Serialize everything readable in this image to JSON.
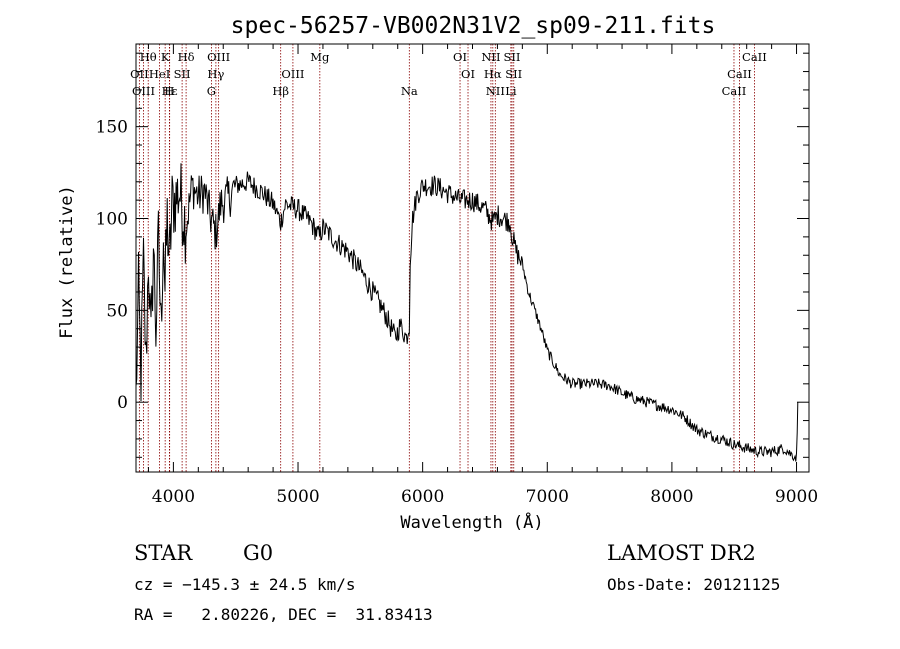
{
  "chart_data": {
    "type": "line",
    "title": "spec-56257-VB002N31V2_sp09-211.fits",
    "xlabel": "Wavelength (Å)",
    "ylabel": "Flux (relative)",
    "xlim": [
      3700,
      9100
    ],
    "ylim": [
      -38,
      195
    ],
    "xticks": [
      4000,
      5000,
      6000,
      7000,
      8000,
      9000
    ],
    "yticks": [
      0,
      50,
      100,
      150
    ],
    "grid": false,
    "spectrum": {
      "name": "",
      "color": "#000000",
      "anchors": [
        [
          3700,
          2
        ],
        [
          3720,
          60
        ],
        [
          3740,
          15
        ],
        [
          3760,
          75
        ],
        [
          3780,
          20
        ],
        [
          3800,
          80
        ],
        [
          3820,
          30
        ],
        [
          3840,
          85
        ],
        [
          3860,
          40
        ],
        [
          3880,
          88
        ],
        [
          3900,
          40
        ],
        [
          3920,
          95
        ],
        [
          3933,
          60
        ],
        [
          3950,
          100
        ],
        [
          3968,
          75
        ],
        [
          3990,
          108
        ],
        [
          4010,
          110
        ],
        [
          4050,
          115
        ],
        [
          4101,
          95
        ],
        [
          4150,
          118
        ],
        [
          4200,
          112
        ],
        [
          4250,
          115
        ],
        [
          4300,
          100
        ],
        [
          4340,
          92
        ],
        [
          4380,
          108
        ],
        [
          4450,
          112
        ],
        [
          4500,
          118
        ],
        [
          4600,
          120
        ],
        [
          4700,
          115
        ],
        [
          4800,
          108
        ],
        [
          4861,
          98
        ],
        [
          4900,
          108
        ],
        [
          5000,
          105
        ],
        [
          5100,
          98
        ],
        [
          5172,
          90
        ],
        [
          5200,
          95
        ],
        [
          5300,
          88
        ],
        [
          5400,
          82
        ],
        [
          5500,
          72
        ],
        [
          5600,
          60
        ],
        [
          5700,
          48
        ],
        [
          5780,
          35
        ],
        [
          5820,
          42
        ],
        [
          5870,
          35
        ],
        [
          5893,
          42
        ],
        [
          5900,
          78
        ],
        [
          5920,
          100
        ],
        [
          5950,
          112
        ],
        [
          6000,
          118
        ],
        [
          6100,
          118
        ],
        [
          6200,
          114
        ],
        [
          6300,
          110
        ],
        [
          6400,
          110
        ],
        [
          6500,
          105
        ],
        [
          6563,
          98
        ],
        [
          6600,
          102
        ],
        [
          6700,
          98
        ],
        [
          6720,
          90
        ],
        [
          6750,
          82
        ],
        [
          6800,
          75
        ],
        [
          6850,
          60
        ],
        [
          6900,
          50
        ],
        [
          6950,
          40
        ],
        [
          7000,
          28
        ],
        [
          7100,
          15
        ],
        [
          7200,
          10
        ],
        [
          7300,
          10
        ],
        [
          7400,
          10
        ],
        [
          7500,
          9
        ],
        [
          7600,
          5
        ],
        [
          7700,
          2
        ],
        [
          7800,
          0
        ],
        [
          7900,
          -2
        ],
        [
          8000,
          -4
        ],
        [
          8100,
          -8
        ],
        [
          8200,
          -15
        ],
        [
          8300,
          -18
        ],
        [
          8400,
          -20
        ],
        [
          8500,
          -23
        ],
        [
          8600,
          -25
        ],
        [
          8700,
          -27
        ],
        [
          8800,
          -27
        ],
        [
          8900,
          -25
        ],
        [
          8950,
          -28
        ],
        [
          9000,
          -30
        ],
        [
          9010,
          0
        ]
      ]
    },
    "spectral_lines": [
      {
        "label": "Hθ",
        "wavelength": 3798,
        "row": 1
      },
      {
        "label": "K",
        "wavelength": 3934,
        "row": 1
      },
      {
        "label": "Hδ",
        "wavelength": 4102,
        "row": 1
      },
      {
        "label": "OIII",
        "wavelength": 4363,
        "row": 1
      },
      {
        "label": "Mg",
        "wavelength": 5175,
        "row": 1
      },
      {
        "label": "OI",
        "wavelength": 6300,
        "row": 1
      },
      {
        "label": "NII",
        "wavelength": 6548,
        "row": 1
      },
      {
        "label": "SII",
        "wavelength": 6717,
        "row": 1
      },
      {
        "label": "CaII",
        "wavelength": 8662,
        "row": 1
      },
      {
        "label": "OII",
        "wavelength": 3727,
        "row": 2
      },
      {
        "label": "HeI",
        "wavelength": 3889,
        "row": 2
      },
      {
        "label": "SII",
        "wavelength": 4070,
        "row": 2
      },
      {
        "label": "Hγ",
        "wavelength": 4341,
        "row": 2
      },
      {
        "label": "OIII",
        "wavelength": 4959,
        "row": 2
      },
      {
        "label": "OI",
        "wavelength": 6364,
        "row": 2
      },
      {
        "label": "Hα",
        "wavelength": 6563,
        "row": 2
      },
      {
        "label": "SII",
        "wavelength": 6731,
        "row": 2
      },
      {
        "label": "CaII",
        "wavelength": 8542,
        "row": 2
      },
      {
        "label": "OIII",
        "wavelength": 3760,
        "row": 3
      },
      {
        "label": "Hε",
        "wavelength": 3970,
        "row": 3
      },
      {
        "label": "H",
        "wavelength": 3968,
        "row": 3
      },
      {
        "label": "G",
        "wavelength": 4305,
        "row": 3
      },
      {
        "label": "Hβ",
        "wavelength": 4861,
        "row": 3
      },
      {
        "label": "Na",
        "wavelength": 5893,
        "row": 3
      },
      {
        "label": "NII",
        "wavelength": 6583,
        "row": 3
      },
      {
        "label": "Li",
        "wavelength": 6708,
        "row": 3
      },
      {
        "label": "CaII",
        "wavelength": 8498,
        "row": 3
      }
    ],
    "line_marker_color": "#8b0000"
  },
  "info": {
    "class": "STAR",
    "subclass": "G0",
    "survey": "LAMOST DR2",
    "redshift": "cz = −145.3 ± 24.5 km/s",
    "obs_date": "Obs-Date: 20121125",
    "coords": "RA =   2.80226, DEC =  31.83413"
  }
}
